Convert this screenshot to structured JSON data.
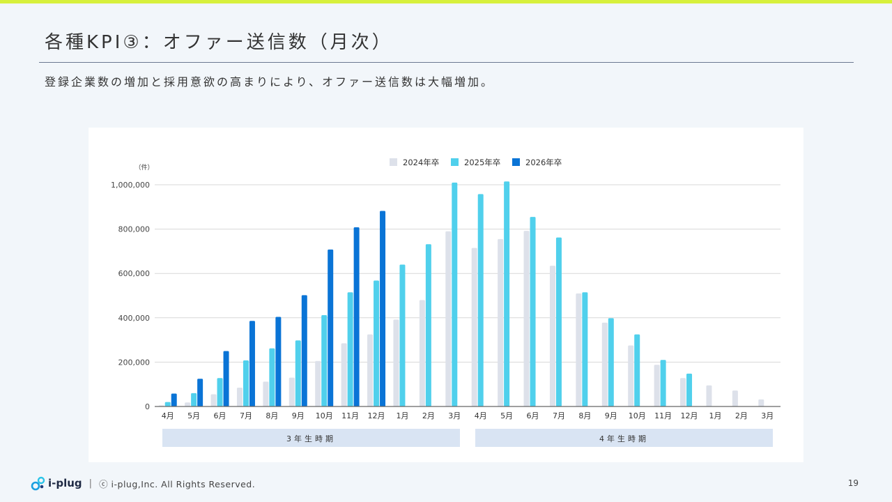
{
  "header": {
    "title": "各種KPI③：オファー送信数（月次）",
    "subtitle": "登録企業数の増加と採用意欲の高まりにより、オファー送信数は大幅増加。"
  },
  "chart_data": {
    "type": "bar",
    "title": "",
    "ylabel": "（件）",
    "ylim": [
      0,
      1000000
    ],
    "yticks": [
      0,
      200000,
      400000,
      600000,
      800000,
      1000000
    ],
    "ytick_labels": [
      "0",
      "200,000",
      "400,000",
      "600,000",
      "800,000",
      "1,000,000"
    ],
    "grid": true,
    "legend_position": "top-center",
    "categories": [
      "4月",
      "5月",
      "6月",
      "7月",
      "8月",
      "9月",
      "10月",
      "11月",
      "12月",
      "1月",
      "2月",
      "3月",
      "4月",
      "5月",
      "6月",
      "7月",
      "8月",
      "9月",
      "10月",
      "11月",
      "12月",
      "1月",
      "2月",
      "3月"
    ],
    "series": [
      {
        "name": "2024年卒",
        "color": "#dde1ea",
        "values": [
          5000,
          18000,
          55000,
          85000,
          112000,
          130000,
          205000,
          285000,
          325000,
          392000,
          480000,
          790000,
          715000,
          755000,
          792000,
          635000,
          510000,
          378000,
          275000,
          188000,
          128000,
          95000,
          72000,
          32000
        ]
      },
      {
        "name": "2025年卒",
        "color": "#50d0ec",
        "values": [
          20000,
          60000,
          128000,
          208000,
          262000,
          298000,
          412000,
          515000,
          568000,
          640000,
          732000,
          1010000,
          958000,
          1015000,
          855000,
          762000,
          515000,
          398000,
          325000,
          210000,
          148000,
          null,
          null,
          null
        ]
      },
      {
        "name": "2026年卒",
        "color": "#0a74d6",
        "values": [
          58000,
          125000,
          250000,
          386000,
          404000,
          502000,
          708000,
          808000,
          882000,
          null,
          null,
          null,
          null,
          null,
          null,
          null,
          null,
          null,
          null,
          null,
          null,
          null,
          null,
          null
        ]
      }
    ],
    "period_bands": [
      {
        "label": "3年生時期",
        "start": 0,
        "end": 11
      },
      {
        "label": "4年生時期",
        "start": 12,
        "end": 23
      }
    ]
  },
  "footer": {
    "logo_text": "i-plug",
    "separator": "|",
    "copyright": "ⓒ i-plug,Inc. All Rights Reserved.",
    "page_number": "19"
  }
}
